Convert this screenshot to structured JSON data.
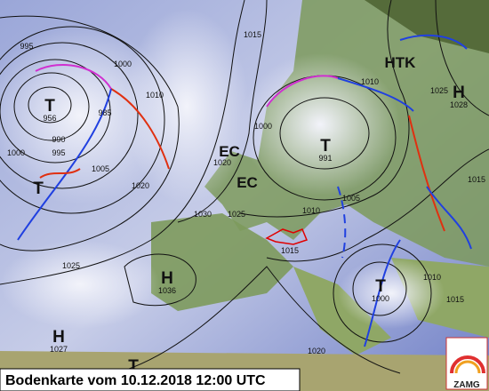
{
  "caption": "Bodenkarte vom 10.12.2018 12:00 UTC",
  "logo": "ZAMG",
  "centers": [
    {
      "symbol": "T",
      "pressure": 956
    },
    {
      "symbol": "T"
    },
    {
      "symbol": "T",
      "pressure": 991
    },
    {
      "symbol": "T",
      "pressure": 1000
    },
    {
      "symbol": "T"
    },
    {
      "symbol": "H",
      "pressure": 1036
    },
    {
      "symbol": "H",
      "pressure": 1027
    },
    {
      "symbol": "H",
      "pressure": 1028
    }
  ],
  "labels": [
    "EC",
    "EC",
    "HTK"
  ],
  "isobar_labels": [
    995,
    1000,
    1010,
    985,
    990,
    995,
    1000,
    1005,
    1020,
    1015,
    1020,
    1030,
    1025,
    1010,
    1025,
    1000,
    1005,
    1010,
    1015,
    1015,
    1025,
    1010,
    1015,
    1020
  ]
}
